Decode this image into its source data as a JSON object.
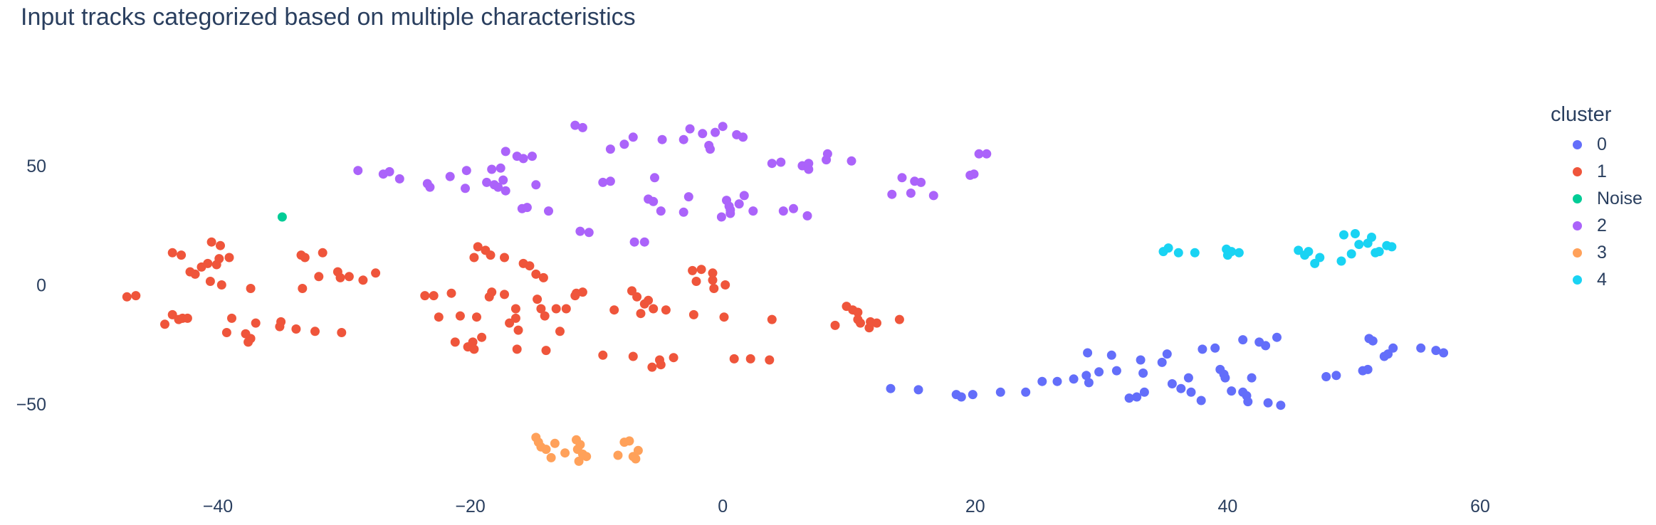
{
  "chart_data": {
    "type": "scatter",
    "title": "Input tracks categorized based on multiple characteristics",
    "xlabel": "",
    "ylabel": "",
    "xlim": [
      -49,
      70
    ],
    "ylim": [
      -84,
      73
    ],
    "x_ticks": [
      -40,
      -20,
      0,
      20,
      40,
      60
    ],
    "y_ticks": [
      -50,
      0,
      50
    ],
    "x_tick_labels": [
      "−40",
      "−20",
      "0",
      "20",
      "40",
      "60"
    ],
    "y_tick_labels": [
      "−50",
      "0",
      "50"
    ],
    "grid": false,
    "legend": {
      "title": "cluster",
      "position": "right"
    },
    "series": [
      {
        "name": "0",
        "color": "#636efa",
        "points": [
          [
            13.3,
            -43.5
          ],
          [
            15.5,
            -44
          ],
          [
            18.5,
            -46
          ],
          [
            18.9,
            -47
          ],
          [
            19.8,
            -46
          ],
          [
            22,
            -45
          ],
          [
            24,
            -45
          ],
          [
            25.3,
            -40.5
          ],
          [
            26.5,
            -40.5
          ],
          [
            27.8,
            -39.5
          ],
          [
            28.8,
            -38
          ],
          [
            29,
            -41
          ],
          [
            29.8,
            -36.5
          ],
          [
            31.2,
            -36
          ],
          [
            32.2,
            -47.5
          ],
          [
            32.8,
            -47
          ],
          [
            33.3,
            -37
          ],
          [
            33.4,
            -45
          ],
          [
            28.9,
            -28.5
          ],
          [
            30.8,
            -29.5
          ],
          [
            33.1,
            -31.5
          ],
          [
            34.8,
            -32.5
          ],
          [
            35.2,
            -29
          ],
          [
            35.6,
            -41.5
          ],
          [
            36.3,
            -43.5
          ],
          [
            36.9,
            -39
          ],
          [
            37.1,
            -45
          ],
          [
            37.9,
            -48.5
          ],
          [
            38,
            -27
          ],
          [
            39,
            -26.5
          ],
          [
            39.4,
            -35.5
          ],
          [
            39.7,
            -37.5
          ],
          [
            39.8,
            -39
          ],
          [
            40.3,
            -44.5
          ],
          [
            41.2,
            -45
          ],
          [
            41.5,
            -46.5
          ],
          [
            41.6,
            -49
          ],
          [
            41.9,
            -39
          ],
          [
            41.2,
            -23
          ],
          [
            42.5,
            -24
          ],
          [
            43,
            -25.5
          ],
          [
            43.2,
            -49.5
          ],
          [
            43.9,
            -22
          ],
          [
            44.2,
            -50.5
          ],
          [
            47.8,
            -38.5
          ],
          [
            48.6,
            -38
          ],
          [
            50.7,
            -36
          ],
          [
            51.1,
            -35.5
          ],
          [
            51.2,
            -22.5
          ],
          [
            51.5,
            -23.5
          ],
          [
            52.4,
            -30
          ],
          [
            52.7,
            -29
          ],
          [
            53.1,
            -26.5
          ],
          [
            55.3,
            -26.5
          ],
          [
            56.5,
            -27.5
          ],
          [
            57.1,
            -28.5
          ]
        ]
      },
      {
        "name": "1",
        "color": "#ef553b",
        "points": [
          [
            -47.2,
            -5
          ],
          [
            -46.5,
            -4.5
          ],
          [
            -43.6,
            13.5
          ],
          [
            -42.9,
            12.5
          ],
          [
            -42.2,
            5.5
          ],
          [
            -41.8,
            4.5
          ],
          [
            -41.3,
            7.5
          ],
          [
            -40.8,
            9
          ],
          [
            -40.1,
            8.5
          ],
          [
            -40.5,
            18
          ],
          [
            -39.8,
            16.5
          ],
          [
            -39.9,
            11
          ],
          [
            -39.1,
            11.5
          ],
          [
            -40.6,
            1.5
          ],
          [
            -39.7,
            0
          ],
          [
            -37.4,
            -1.5
          ],
          [
            -44.2,
            -16.5
          ],
          [
            -43.6,
            -12.5
          ],
          [
            -43.1,
            -14.5
          ],
          [
            -42.8,
            -14
          ],
          [
            -42.4,
            -14
          ],
          [
            -39.3,
            -20
          ],
          [
            -38.9,
            -14
          ],
          [
            -37.8,
            -20.5
          ],
          [
            -37.4,
            -22.5
          ],
          [
            -37.6,
            -24
          ],
          [
            -37,
            -16
          ],
          [
            -35.1,
            -17.5
          ],
          [
            -35,
            -15.5
          ],
          [
            -33.8,
            -18.5
          ],
          [
            -32.3,
            -19.5
          ],
          [
            -30.2,
            -20
          ],
          [
            -33.4,
            12.5
          ],
          [
            -33.1,
            11.5
          ],
          [
            -32,
            3.5
          ],
          [
            -31.7,
            13.5
          ],
          [
            -33.3,
            -1.5
          ],
          [
            -30.5,
            5.5
          ],
          [
            -30.3,
            3
          ],
          [
            -29.6,
            3.5
          ],
          [
            -28.5,
            2
          ],
          [
            -27.5,
            5
          ],
          [
            -23.6,
            -4.5
          ],
          [
            -22.9,
            -4.5
          ],
          [
            -22.5,
            -13.5
          ],
          [
            -21.5,
            -3.5
          ],
          [
            -21.2,
            -24
          ],
          [
            -20.8,
            -13
          ],
          [
            -20.2,
            -26
          ],
          [
            -19.8,
            -24
          ],
          [
            -19.7,
            -27
          ],
          [
            -19.5,
            -13.5
          ],
          [
            -19.1,
            -22
          ],
          [
            -19.7,
            11.5
          ],
          [
            -19.4,
            16
          ],
          [
            -18.8,
            14.5
          ],
          [
            -18.4,
            12.5
          ],
          [
            -17.3,
            11.5
          ],
          [
            -18.3,
            -3
          ],
          [
            -18.5,
            -5
          ],
          [
            -17.3,
            -4
          ],
          [
            -16.9,
            -16
          ],
          [
            -16.4,
            -10
          ],
          [
            -16.4,
            -14
          ],
          [
            -16.3,
            -27
          ],
          [
            -16.2,
            -19
          ],
          [
            -15.8,
            9
          ],
          [
            -15.3,
            8
          ],
          [
            -14.8,
            4.5
          ],
          [
            -14.7,
            -6
          ],
          [
            -14.4,
            -10
          ],
          [
            -14.1,
            -13
          ],
          [
            -14,
            -27.5
          ],
          [
            -14.2,
            3
          ],
          [
            -13.2,
            -10
          ],
          [
            -12.9,
            -19.5
          ],
          [
            -12.4,
            -10
          ],
          [
            -11.6,
            -3.5
          ],
          [
            -11.7,
            -4.5
          ],
          [
            -11.1,
            -3
          ],
          [
            -9.5,
            -29.5
          ],
          [
            -8.6,
            -10.5
          ],
          [
            -7.2,
            -2.5
          ],
          [
            -7.1,
            -30
          ],
          [
            -6.8,
            -5
          ],
          [
            -6.5,
            -12
          ],
          [
            -6.2,
            -8
          ],
          [
            -5.9,
            -6.5
          ],
          [
            -5.5,
            -10
          ],
          [
            -5.6,
            -34.5
          ],
          [
            -5,
            -31.5
          ],
          [
            -4.9,
            -33.5
          ],
          [
            -4.5,
            -10.5
          ],
          [
            -3.9,
            -30.5
          ],
          [
            -2.4,
            6
          ],
          [
            -2.1,
            1.5
          ],
          [
            -1.7,
            6.5
          ],
          [
            -2.3,
            -12.5
          ],
          [
            -0.7,
            -1.5
          ],
          [
            -0.8,
            2
          ],
          [
            -0.8,
            5
          ],
          [
            0.2,
            0
          ],
          [
            0.1,
            -13.5
          ],
          [
            0.9,
            -31
          ],
          [
            2.2,
            -31
          ],
          [
            3.7,
            -31.5
          ],
          [
            3.9,
            -14.5
          ],
          [
            8.9,
            -17
          ],
          [
            9.8,
            -9
          ],
          [
            10.3,
            -10.5
          ],
          [
            10.7,
            -11.5
          ],
          [
            10.7,
            -14.5
          ],
          [
            10.9,
            -16
          ],
          [
            11.6,
            -18
          ],
          [
            11.7,
            -15.5
          ],
          [
            12.2,
            -16
          ],
          [
            14,
            -14.5
          ]
        ]
      },
      {
        "name": "Noise",
        "color": "#00cc96",
        "points": [
          [
            -34.9,
            28.5
          ]
        ]
      },
      {
        "name": "2",
        "color": "#ab63fa",
        "points": [
          [
            -28.9,
            48
          ],
          [
            -26.9,
            46.5
          ],
          [
            -26.4,
            47.5
          ],
          [
            -25.6,
            44.5
          ],
          [
            -23.4,
            42.5
          ],
          [
            -23.2,
            41
          ],
          [
            -21.6,
            45.5
          ],
          [
            -20.3,
            48
          ],
          [
            -20.4,
            40.5
          ],
          [
            -18.7,
            43
          ],
          [
            -18.3,
            48.5
          ],
          [
            -18.1,
            42
          ],
          [
            -17.8,
            41
          ],
          [
            -17.6,
            49
          ],
          [
            -17.2,
            39.5
          ],
          [
            -17.4,
            44
          ],
          [
            -17.2,
            56
          ],
          [
            -16.3,
            54
          ],
          [
            -15.8,
            53
          ],
          [
            -15.9,
            32
          ],
          [
            -15.5,
            32.5
          ],
          [
            -15.1,
            54
          ],
          [
            -14.8,
            42
          ],
          [
            -13.8,
            31
          ],
          [
            -11.7,
            67
          ],
          [
            -11.1,
            66
          ],
          [
            -11.3,
            22.5
          ],
          [
            -10.6,
            22
          ],
          [
            -9.5,
            43
          ],
          [
            -8.9,
            43.5
          ],
          [
            -8.9,
            57
          ],
          [
            -7.8,
            59
          ],
          [
            -7.1,
            62
          ],
          [
            -7,
            18
          ],
          [
            -6.2,
            18
          ],
          [
            -5.9,
            36
          ],
          [
            -5.4,
            45
          ],
          [
            -5.5,
            35
          ],
          [
            -4.9,
            31
          ],
          [
            -4.8,
            61
          ],
          [
            -3.1,
            30.5
          ],
          [
            -3.1,
            61
          ],
          [
            -2.7,
            37
          ],
          [
            -2.6,
            65.5
          ],
          [
            -1.6,
            63.5
          ],
          [
            -1.1,
            58.5
          ],
          [
            -1,
            57
          ],
          [
            -0.6,
            64
          ],
          [
            0,
            66.5
          ],
          [
            0.3,
            35.5
          ],
          [
            0.5,
            33
          ],
          [
            0.6,
            30
          ],
          [
            -0.1,
            28.5
          ],
          [
            0.6,
            31.5
          ],
          [
            1.1,
            63
          ],
          [
            1.6,
            62
          ],
          [
            1.7,
            37.5
          ],
          [
            1.3,
            34
          ],
          [
            2.4,
            31
          ],
          [
            3.9,
            51
          ],
          [
            4.6,
            51.5
          ],
          [
            4.8,
            31
          ],
          [
            5.6,
            32
          ],
          [
            6.3,
            50
          ],
          [
            6.8,
            48.5
          ],
          [
            6.7,
            29
          ],
          [
            6.8,
            51
          ],
          [
            8.2,
            52.5
          ],
          [
            8.3,
            55
          ],
          [
            10.2,
            52
          ],
          [
            13.4,
            38
          ],
          [
            14.2,
            45
          ],
          [
            14.9,
            38.5
          ],
          [
            15.2,
            43.5
          ],
          [
            15.7,
            43
          ],
          [
            16.7,
            37.5
          ],
          [
            19.6,
            46
          ],
          [
            19.9,
            46.5
          ],
          [
            20.3,
            55
          ],
          [
            20.9,
            55
          ]
        ]
      },
      {
        "name": "3",
        "color": "#ffa15a",
        "points": [
          [
            -14.8,
            -64
          ],
          [
            -14.6,
            -66
          ],
          [
            -14.4,
            -68
          ],
          [
            -14,
            -69
          ],
          [
            -13.6,
            -72.5
          ],
          [
            -13.3,
            -66.5
          ],
          [
            -12.5,
            -70.5
          ],
          [
            -11.6,
            -65
          ],
          [
            -11.3,
            -67
          ],
          [
            -11.5,
            -69
          ],
          [
            -11.4,
            -74
          ],
          [
            -11.1,
            -71
          ],
          [
            -10.8,
            -72
          ],
          [
            -8.3,
            -71.5
          ],
          [
            -7.8,
            -66
          ],
          [
            -7.4,
            -65.5
          ],
          [
            -7.1,
            -72
          ],
          [
            -6.9,
            -73
          ],
          [
            -6.7,
            -69.5
          ]
        ]
      },
      {
        "name": "4",
        "color": "#19d3f3",
        "points": [
          [
            34.9,
            14
          ],
          [
            35.3,
            15.5
          ],
          [
            36.1,
            13.5
          ],
          [
            37.4,
            13.5
          ],
          [
            39.9,
            15
          ],
          [
            40,
            12.5
          ],
          [
            40.3,
            14
          ],
          [
            40.9,
            13.5
          ],
          [
            45.6,
            14.5
          ],
          [
            46.1,
            12.5
          ],
          [
            46.4,
            14
          ],
          [
            46.9,
            9
          ],
          [
            47.3,
            11.5
          ],
          [
            49.2,
            21
          ],
          [
            49.8,
            13
          ],
          [
            49,
            10
          ],
          [
            50.1,
            21.5
          ],
          [
            50.4,
            17
          ],
          [
            51.1,
            17.5
          ],
          [
            51.4,
            20
          ],
          [
            51.7,
            13.5
          ],
          [
            52,
            14
          ],
          [
            52.6,
            16.5
          ],
          [
            53,
            16
          ]
        ]
      }
    ]
  }
}
